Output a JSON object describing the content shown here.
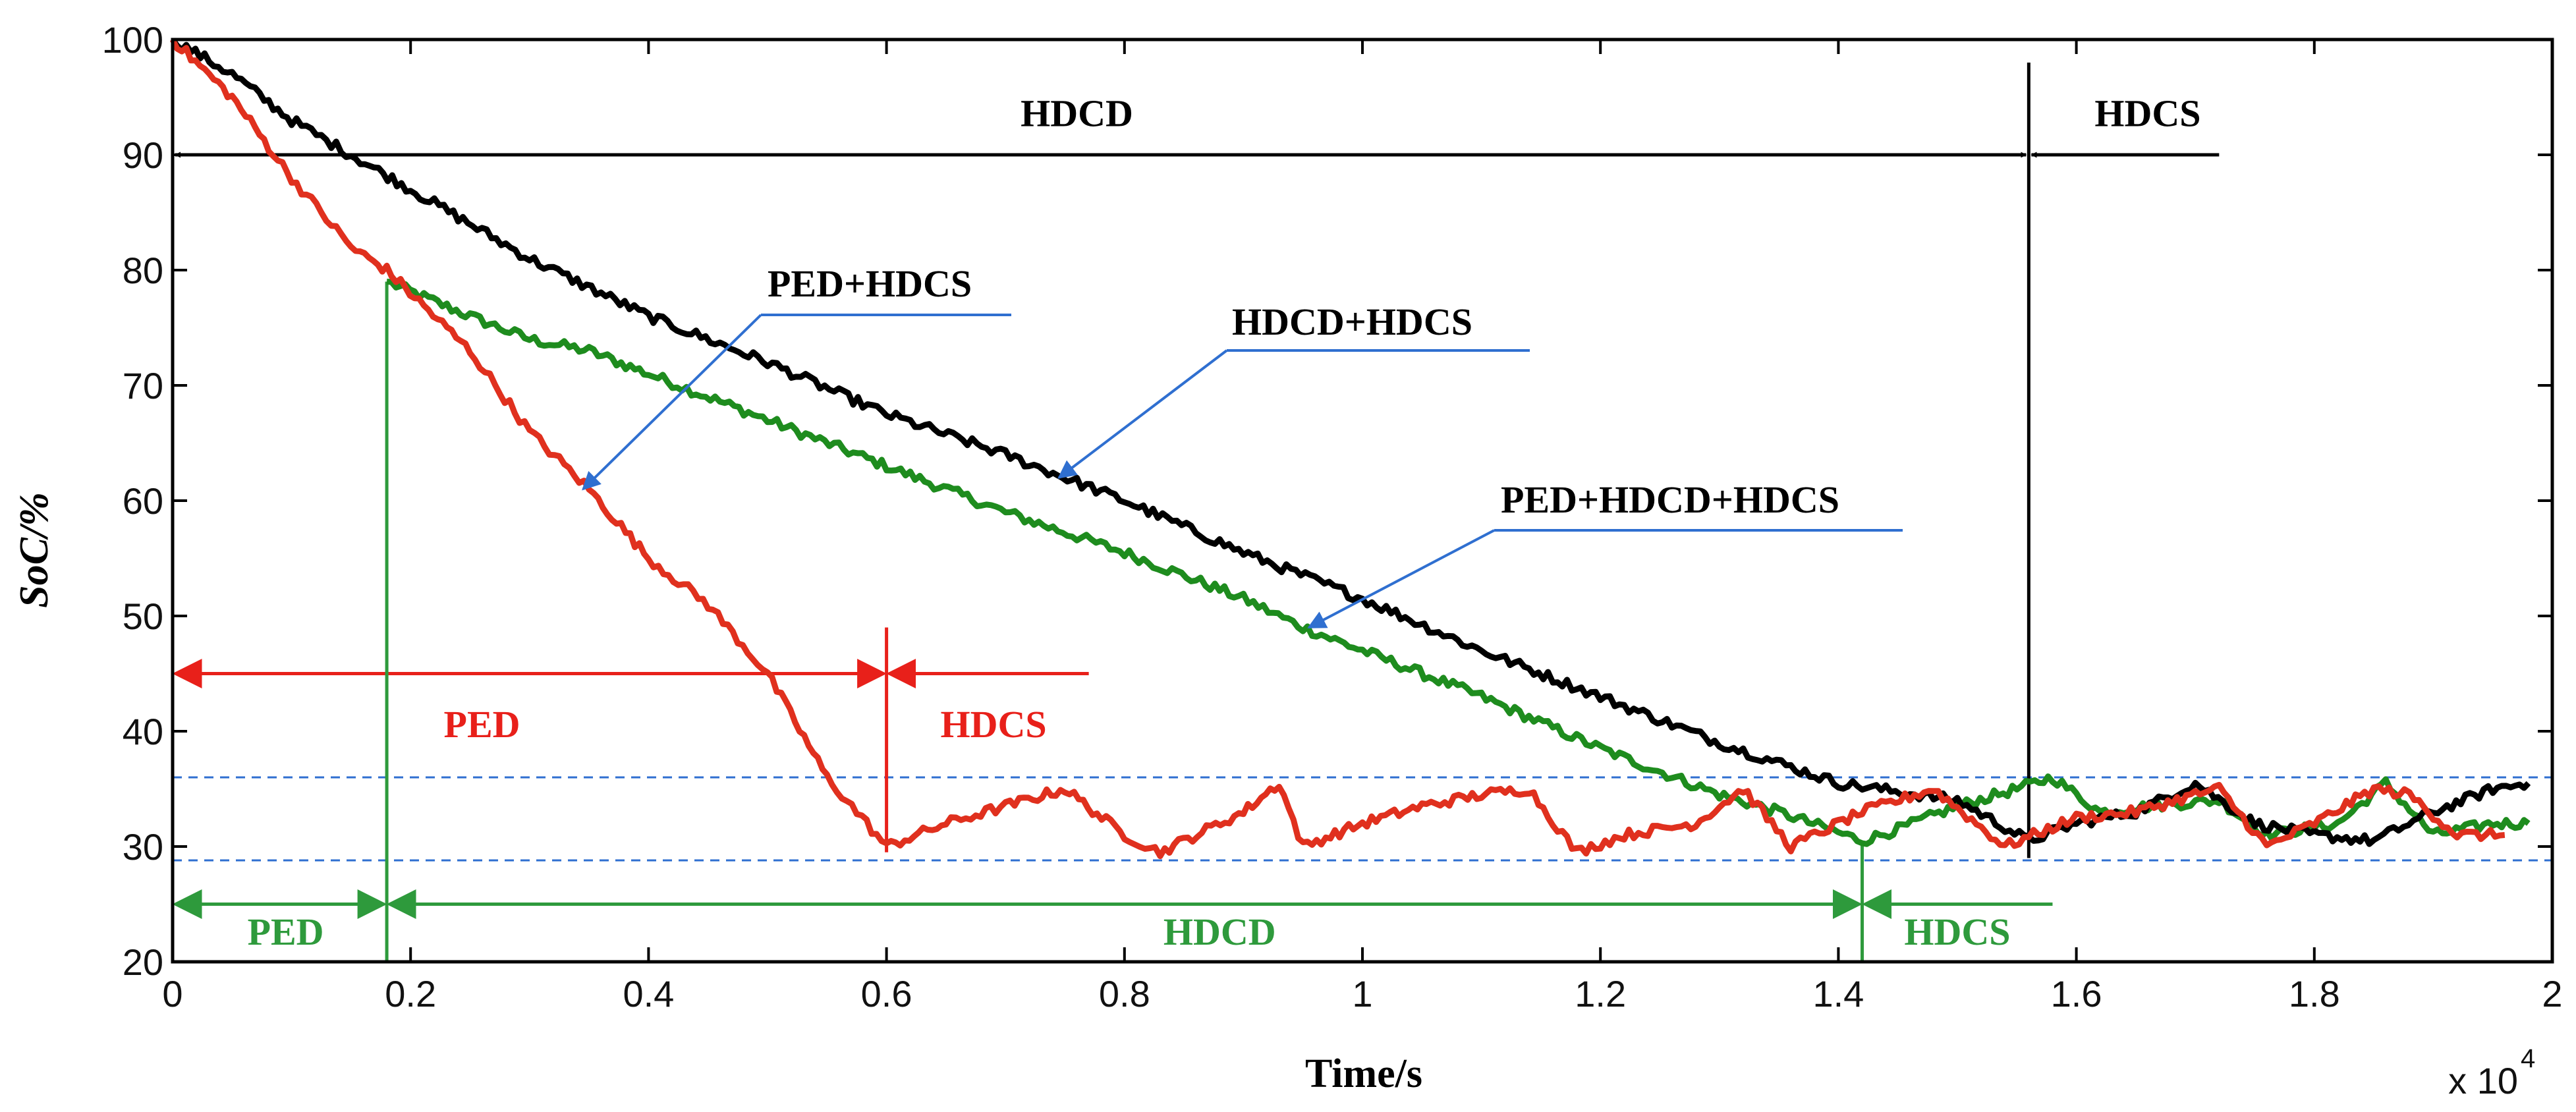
{
  "chart_data": {
    "type": "line",
    "title": "",
    "xlabel": "Time/s",
    "ylabel": "SoC/%",
    "x_multiplier_label": "x 10",
    "x_multiplier_exponent": "4",
    "xlim": [
      0,
      2
    ],
    "ylim": [
      20,
      100
    ],
    "x_ticks": [
      0,
      0.2,
      0.4,
      0.6,
      0.8,
      1,
      1.2,
      1.4,
      1.6,
      1.8,
      2
    ],
    "x_tick_labels": [
      "0",
      "0.2",
      "0.4",
      "0.6",
      "0.8",
      "1",
      "1.2",
      "1.4",
      "1.6",
      "1.8",
      "2"
    ],
    "y_ticks": [
      20,
      30,
      40,
      50,
      60,
      70,
      80,
      90,
      100
    ],
    "y_tick_labels": [
      "20",
      "30",
      "40",
      "50",
      "60",
      "70",
      "80",
      "90",
      "100"
    ],
    "threshold_lines": [
      {
        "name": "upper-threshold",
        "y": 36,
        "color": "#2f6fd0"
      },
      {
        "name": "lower-threshold",
        "y": 28.8,
        "color": "#2f6fd0"
      }
    ],
    "series": [
      {
        "name": "HDCD+HDCS",
        "color": "#000000",
        "x": [
          0,
          0.05,
          0.1,
          0.15,
          0.2,
          0.3,
          0.4,
          0.5,
          0.6,
          0.7,
          0.8,
          0.9,
          1.0,
          1.1,
          1.2,
          1.3,
          1.4,
          1.5,
          1.56,
          1.6,
          1.65,
          1.7,
          1.75,
          1.8,
          1.85,
          1.9,
          1.95,
          1.98
        ],
        "values": [
          100,
          97,
          93,
          90,
          87,
          81,
          76,
          72,
          67.5,
          64,
          60,
          55.5,
          51.5,
          47,
          43,
          39,
          35.5,
          34,
          30.5,
          32,
          33,
          35.5,
          32,
          31,
          30.5,
          33,
          35,
          35.5
        ]
      },
      {
        "name": "PED+HDCS",
        "color": "#e0301e",
        "x": [
          0,
          0.05,
          0.1,
          0.15,
          0.18,
          0.25,
          0.3,
          0.35,
          0.4,
          0.45,
          0.5,
          0.55,
          0.6,
          0.65,
          0.7,
          0.75,
          0.8,
          0.83,
          0.9,
          0.93,
          0.95,
          1.0,
          1.05,
          1.1,
          1.14,
          1.18,
          1.22,
          1.28,
          1.32,
          1.36,
          1.42,
          1.48,
          1.54,
          1.6,
          1.65,
          1.7,
          1.72,
          1.76,
          1.8,
          1.85,
          1.88,
          1.92,
          1.96
        ],
        "values": [
          100,
          95,
          88,
          82,
          80,
          73,
          66,
          61,
          55,
          51,
          45,
          36,
          30,
          32,
          33.5,
          35,
          31,
          29.5,
          33,
          35.5,
          30,
          32,
          33.5,
          34.5,
          35,
          29.5,
          31,
          32,
          35,
          30,
          33,
          35,
          30,
          32.5,
          33,
          34.5,
          35,
          30,
          32,
          35,
          34.5,
          31,
          31
        ]
      },
      {
        "name": "PED+HDCD+HDCS",
        "color": "#1e8c1e",
        "x": [
          0.18,
          0.25,
          0.3,
          0.35,
          0.4,
          0.5,
          0.6,
          0.7,
          0.8,
          0.9,
          0.95,
          1.0,
          1.1,
          1.2,
          1.3,
          1.35,
          1.42,
          1.45,
          1.5,
          1.55,
          1.58,
          1.62,
          1.66,
          1.72,
          1.76,
          1.82,
          1.86,
          1.9,
          1.95,
          1.98
        ],
        "values": [
          79,
          76,
          74,
          73,
          71,
          67,
          63,
          59,
          55.5,
          51.5,
          49,
          47,
          43,
          38.5,
          34.5,
          33,
          30.5,
          31.5,
          33.5,
          35,
          36,
          33,
          33.5,
          34,
          31,
          32,
          35.5,
          31,
          32,
          32
        ]
      }
    ],
    "annotations": {
      "black_modes": {
        "left": "HDCD",
        "right": "HDCS",
        "boundary_x": 1.56,
        "arrow_y": 90
      },
      "red_modes": {
        "left": "PED",
        "right": "HDCS",
        "boundary_x": 0.6,
        "arrow_y": 45
      },
      "green_modes": {
        "first": "PED",
        "second": "HDCD",
        "third": "HDCS",
        "boundary1_x": 0.18,
        "boundary2_x": 1.42,
        "arrow_y": 25
      },
      "callouts": [
        {
          "name": "callout-ped-hdcs",
          "label": "PED+HDCS",
          "target_x": 0.345,
          "target_y": 61
        },
        {
          "name": "callout-hdcd-hdcs",
          "label": "HDCD+HDCS",
          "target_x": 0.745,
          "target_y": 62
        },
        {
          "name": "callout-ped-hdcd-hdcs",
          "label": "PED+HDCD+HDCS",
          "target_x": 0.955,
          "target_y": 49
        }
      ]
    }
  }
}
